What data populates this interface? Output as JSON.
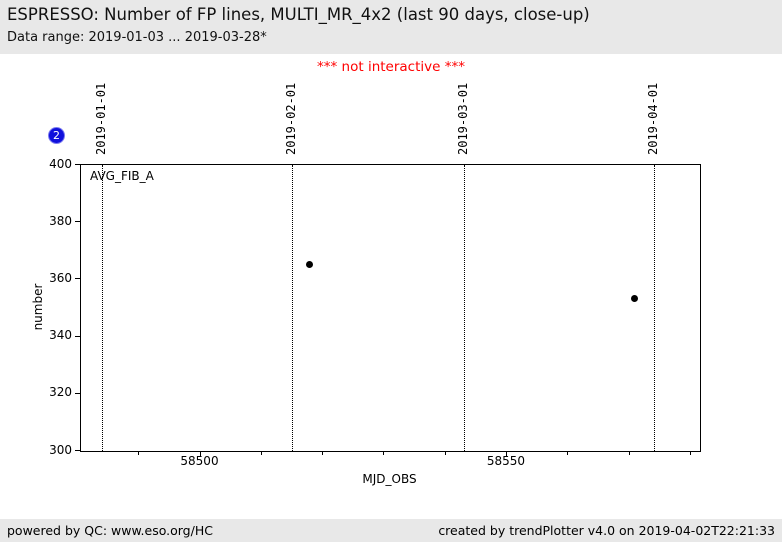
{
  "header": {
    "title": "ESPRESSO: Number of FP lines, MULTI_MR_4x2 (last 90 days, close-up)",
    "subtitle": "Data range: 2019-01-03 ... 2019-03-28*"
  },
  "notice": "*** not interactive ***",
  "badge": {
    "label": "2"
  },
  "chart_data": {
    "type": "scatter",
    "series_label": "AVG_FIB_A",
    "xlabel": "MJD_OBS",
    "ylabel": "number",
    "xlim": [
      58480.5,
      58581.5
    ],
    "ylim": [
      300,
      400
    ],
    "yticks": [
      300,
      320,
      340,
      360,
      380,
      400
    ],
    "xticks_major": [
      58500,
      58550
    ],
    "xtick_minor_step": 10,
    "points": [
      [
        58518,
        365
      ],
      [
        58571,
        353
      ]
    ],
    "point_color": "#000000",
    "month_markers": [
      {
        "mjd": 58484,
        "label": "2019-01-01"
      },
      {
        "mjd": 58515,
        "label": "2019-02-01"
      },
      {
        "mjd": 58543,
        "label": "2019-03-01"
      },
      {
        "mjd": 58574,
        "label": "2019-04-01"
      }
    ],
    "grid": "vertical dotted month lines only",
    "legend_position": "none"
  },
  "footer": {
    "left": "powered by QC: www.eso.org/HC",
    "right": "created by trendPlotter v4.0 on 2019-04-02T22:21:33"
  },
  "colors": {
    "header_bg": "#e8e8e8",
    "footer_bg": "#e8e8e8",
    "notice": "#ff0000",
    "badge_bg": "#1010dc",
    "badge_fg": "#ffffff"
  }
}
